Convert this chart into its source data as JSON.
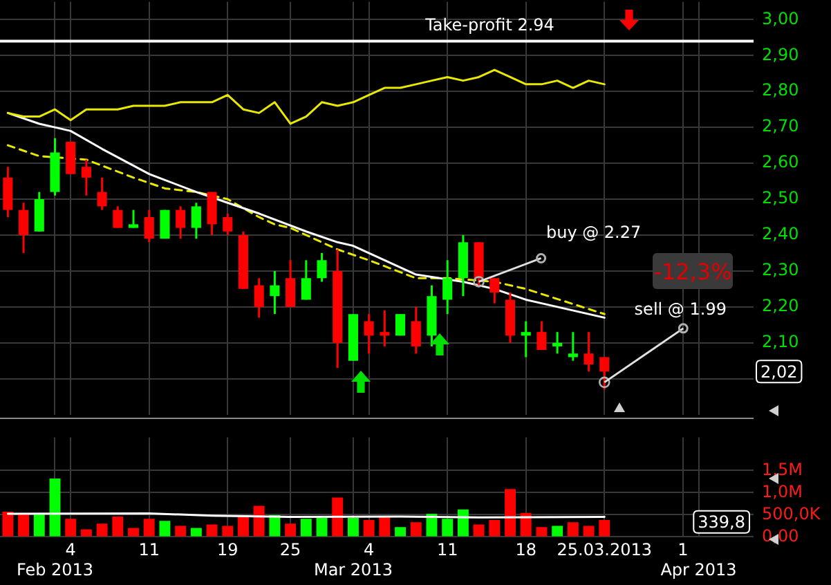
{
  "chart_data": [
    {
      "type": "candlestick",
      "categories": [
        null,
        null,
        null,
        null,
        null,
        null,
        null,
        null,
        null,
        null,
        null,
        null,
        null,
        null,
        null,
        null,
        null,
        null,
        null,
        null,
        null,
        null,
        null,
        null,
        null,
        null,
        null,
        null,
        null,
        null,
        null,
        null,
        null,
        null,
        null,
        null,
        null,
        null,
        null,
        null,
        null,
        null,
        null,
        null,
        null,
        null,
        null,
        null
      ],
      "ohlc": [
        [
          2.56,
          2.59,
          2.45,
          2.47
        ],
        [
          2.47,
          2.49,
          2.35,
          2.4
        ],
        [
          2.41,
          2.52,
          2.41,
          2.5
        ],
        [
          2.52,
          2.67,
          2.51,
          2.63
        ],
        [
          2.66,
          2.66,
          2.57,
          2.57
        ],
        [
          2.59,
          2.61,
          2.51,
          2.56
        ],
        [
          2.52,
          2.56,
          2.47,
          2.48
        ],
        [
          2.47,
          2.48,
          2.42,
          2.42
        ],
        [
          2.42,
          2.47,
          2.42,
          2.43
        ],
        [
          2.45,
          2.47,
          2.38,
          2.39
        ],
        [
          2.39,
          2.47,
          2.39,
          2.47
        ],
        [
          2.47,
          2.48,
          2.39,
          2.42
        ],
        [
          2.42,
          2.49,
          2.39,
          2.48
        ],
        [
          2.52,
          2.52,
          2.4,
          2.43
        ],
        [
          2.45,
          2.46,
          2.4,
          2.41
        ],
        [
          2.4,
          2.41,
          2.25,
          2.25
        ],
        [
          2.26,
          2.28,
          2.17,
          2.2
        ],
        [
          2.23,
          2.3,
          2.18,
          2.26
        ],
        [
          2.28,
          2.33,
          2.2,
          2.2
        ],
        [
          2.22,
          2.33,
          2.22,
          2.28
        ],
        [
          2.28,
          2.35,
          2.27,
          2.33
        ],
        [
          2.3,
          2.36,
          2.03,
          2.1
        ],
        [
          2.05,
          2.18,
          2.05,
          2.18
        ],
        [
          2.16,
          2.18,
          2.07,
          2.12
        ],
        [
          2.13,
          2.19,
          2.09,
          2.12
        ],
        [
          2.12,
          2.18,
          2.12,
          2.18
        ],
        [
          2.16,
          2.2,
          2.07,
          2.09
        ],
        [
          2.12,
          2.26,
          2.09,
          2.23
        ],
        [
          2.22,
          2.33,
          2.18,
          2.28
        ],
        [
          2.28,
          2.4,
          2.23,
          2.38
        ],
        [
          2.38,
          2.38,
          2.26,
          2.28
        ],
        [
          2.28,
          2.28,
          2.21,
          2.24
        ],
        [
          2.22,
          2.24,
          2.1,
          2.12
        ],
        [
          2.12,
          2.16,
          2.06,
          2.13
        ],
        [
          2.13,
          2.16,
          2.08,
          2.08
        ],
        [
          2.09,
          2.13,
          2.07,
          2.1
        ],
        [
          2.06,
          2.13,
          2.05,
          2.07
        ],
        [
          2.07,
          2.13,
          2.02,
          2.04
        ],
        [
          2.06,
          2.06,
          1.97,
          2.02
        ],
        null,
        null,
        null,
        null,
        null,
        null,
        null,
        null,
        null
      ],
      "colors": [
        "#ff0000",
        "#ff0000",
        "#00ff00",
        "#00ff00",
        "#ff0000",
        "#ff0000",
        "#ff0000",
        "#ff0000",
        "#00ff00",
        "#ff0000",
        "#00ff00",
        "#ff0000",
        "#00ff00",
        "#ff0000",
        "#ff0000",
        "#ff0000",
        "#ff0000",
        "#00ff00",
        "#ff0000",
        "#00ff00",
        "#00ff00",
        "#ff0000",
        "#00ff00",
        "#ff0000",
        "#ff0000",
        "#00ff00",
        "#ff0000",
        "#00ff00",
        "#00ff00",
        "#00ff00",
        "#ff0000",
        "#ff0000",
        "#ff0000",
        "#00ff00",
        "#ff0000",
        "#00ff00",
        "#00ff00",
        "#ff0000",
        "#ff0000",
        null,
        null,
        null,
        null,
        null,
        null,
        null,
        null,
        null
      ],
      "series": [
        {
          "type": "line",
          "color": "#e8e800",
          "line_style": "solid",
          "values": [
            2.74,
            2.73,
            2.73,
            2.75,
            2.72,
            2.75,
            2.75,
            2.75,
            2.76,
            2.76,
            2.76,
            2.77,
            2.77,
            2.77,
            2.79,
            2.75,
            2.74,
            2.77,
            2.71,
            2.73,
            2.77,
            2.76,
            2.77,
            2.79,
            2.81,
            2.81,
            2.82,
            2.83,
            2.84,
            2.83,
            2.84,
            2.86,
            2.84,
            2.82,
            2.82,
            2.83,
            2.81,
            2.83,
            2.82,
            null,
            null,
            null,
            null,
            null,
            null,
            null,
            null,
            null
          ]
        },
        {
          "type": "line",
          "color": "#ffffff",
          "line_style": "solid",
          "values": [
            2.74,
            null,
            2.71,
            2.7,
            2.69,
            null,
            2.64,
            null,
            null,
            2.57,
            null,
            null,
            2.52,
            null,
            2.49,
            null,
            2.46,
            null,
            null,
            2.41,
            null,
            2.38,
            2.37,
            null,
            2.33,
            null,
            2.29,
            null,
            null,
            2.27,
            null,
            2.25,
            null,
            2.22,
            2.21,
            null,
            null,
            null,
            2.17,
            null,
            null,
            null,
            null,
            null,
            null,
            null,
            null,
            null
          ]
        },
        {
          "type": "line",
          "color": "#e8e800",
          "line_style": "dashed",
          "values": [
            2.65,
            null,
            2.62,
            null,
            null,
            2.61,
            null,
            null,
            2.56,
            null,
            2.53,
            null,
            2.52,
            null,
            2.5,
            null,
            2.45,
            2.43,
            2.42,
            null,
            null,
            2.36,
            null,
            2.33,
            null,
            null,
            2.28,
            null,
            2.28,
            null,
            null,
            2.27,
            null,
            2.25,
            null,
            null,
            null,
            null,
            2.18,
            null,
            null,
            null,
            null,
            null,
            null,
            null,
            null,
            null
          ]
        },
        {
          "type": "scatter",
          "color": "#b0b0b0",
          "marker": "circle",
          "values": [
            null,
            null,
            null,
            null,
            null,
            null,
            null,
            null,
            null,
            null,
            null,
            null,
            null,
            null,
            null,
            null,
            null,
            null,
            null,
            null,
            null,
            null,
            null,
            null,
            null,
            null,
            null,
            null,
            null,
            null,
            2.27,
            null,
            null,
            null,
            null,
            null,
            null,
            null,
            1.99,
            null,
            null,
            null,
            null,
            null,
            null,
            null,
            null,
            null
          ]
        }
      ],
      "ylim": [
        1.9,
        3.05
      ],
      "yticks": [
        {
          "value": 2,
          "label": null
        },
        {
          "value": 2.1,
          "label": "2,10"
        },
        {
          "value": 2.2,
          "label": "2,20"
        },
        {
          "value": 2.3,
          "label": "2,30"
        },
        {
          "value": 2.4,
          "label": "2,40"
        },
        {
          "value": 2.5,
          "label": "2,50"
        },
        {
          "value": 2.6,
          "label": "2,60"
        },
        {
          "value": 2.7,
          "label": "2,70"
        },
        {
          "value": 2.8,
          "label": "2,80"
        },
        {
          "value": 2.9,
          "label": "2,90"
        },
        {
          "value": 3,
          "label": "3,00"
        }
      ],
      "grid": true,
      "tick_labels": "y",
      "ref_lines": [
        {
          "axis": "y",
          "value": 2.94,
          "label": "Take-profit 2.94",
          "color": "#ffffff"
        }
      ],
      "annotations": [
        "buy @ 2.27",
        "sell @ 1.99",
        "-12,3%",
        {
          "text": "2,02",
          "y": 2.02
        }
      ]
    },
    {
      "type": "bar",
      "categories": [
        null,
        null,
        null,
        "Feb 2013",
        "4",
        null,
        null,
        null,
        null,
        "11",
        null,
        null,
        null,
        null,
        "19",
        null,
        null,
        null,
        "25",
        null,
        null,
        null,
        "Mar 2013",
        "4",
        null,
        null,
        null,
        null,
        "11",
        null,
        null,
        null,
        null,
        "18",
        null,
        null,
        null,
        null,
        "25.03.2013",
        null,
        null,
        null,
        null,
        "1",
        "Apr 2013",
        null,
        null,
        null
      ],
      "series": [
        {
          "colors": [
            "#ff0000",
            "#ff0000",
            "#00ff00",
            "#00ff00",
            "#ff0000",
            "#ff0000",
            "#ff0000",
            "#ff0000",
            "#ff0000",
            "#ff0000",
            "#00ff00",
            "#ff0000",
            "#00ff00",
            "#ff0000",
            "#ff0000",
            "#ff0000",
            "#ff0000",
            "#00ff00",
            "#ff0000",
            "#00ff00",
            "#00ff00",
            "#ff0000",
            "#00ff00",
            "#ff0000",
            "#ff0000",
            "#00ff00",
            "#ff0000",
            "#00ff00",
            "#00ff00",
            "#00ff00",
            "#ff0000",
            "#ff0000",
            "#ff0000",
            "#ff0000",
            "#ff0000",
            "#00ff00",
            "#ff0000",
            "#ff0000",
            "#ff0000",
            null,
            null,
            null,
            null,
            null,
            null,
            null,
            null,
            null
          ],
          "values": [
            570000,
            530000,
            530000,
            1320000,
            410000,
            170000,
            300000,
            460000,
            200000,
            410000,
            360000,
            250000,
            200000,
            280000,
            250000,
            490000,
            700000,
            490000,
            300000,
            410000,
            460000,
            890000,
            430000,
            380000,
            460000,
            220000,
            330000,
            520000,
            410000,
            620000,
            280000,
            380000,
            1080000,
            540000,
            220000,
            250000,
            330000,
            250000,
            380000,
            null,
            null,
            null,
            null,
            null,
            null,
            null,
            null,
            null
          ]
        },
        {
          "type": "line",
          "color": "#ffffff",
          "line_style": "solid",
          "values": [
            520000,
            null,
            null,
            null,
            null,
            null,
            null,
            null,
            null,
            530000,
            null,
            null,
            null,
            480000,
            null,
            null,
            null,
            null,
            450000,
            null,
            null,
            null,
            null,
            null,
            null,
            460000,
            null,
            null,
            null,
            null,
            440000,
            null,
            null,
            null,
            null,
            null,
            null,
            null,
            450000,
            null,
            null,
            null,
            null,
            null,
            null,
            null,
            null,
            null
          ]
        }
      ],
      "ylim": [
        0,
        2250000
      ],
      "yticks": [
        {
          "value": 0,
          "label": "0,00"
        },
        {
          "value": 500000,
          "label": "500,0K"
        },
        {
          "value": 1000000,
          "label": "1,0M"
        },
        {
          "value": 1500000,
          "label": "1,5M"
        }
      ],
      "grid": true,
      "annotations": [
        {
          "text": "339,8",
          "y": 339800
        }
      ]
    }
  ]
}
